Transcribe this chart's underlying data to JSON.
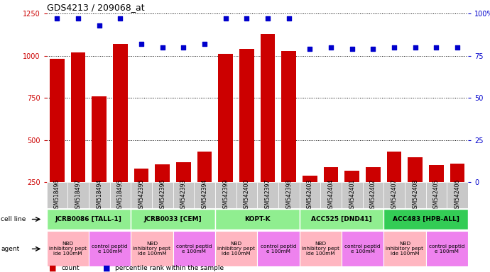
{
  "title": "GDS4213 / 209068_at",
  "samples": [
    "GSM518496",
    "GSM518497",
    "GSM518494",
    "GSM518495",
    "GSM542395",
    "GSM542396",
    "GSM542393",
    "GSM542394",
    "GSM542399",
    "GSM542400",
    "GSM542397",
    "GSM542398",
    "GSM542403",
    "GSM542404",
    "GSM542401",
    "GSM542402",
    "GSM542407",
    "GSM542408",
    "GSM542405",
    "GSM542406"
  ],
  "counts": [
    980,
    1020,
    760,
    1070,
    330,
    355,
    370,
    430,
    1010,
    1040,
    1130,
    1030,
    290,
    340,
    320,
    340,
    430,
    400,
    350,
    360
  ],
  "percentile": [
    97,
    97,
    93,
    97,
    82,
    80,
    80,
    82,
    97,
    97,
    97,
    97,
    79,
    80,
    79,
    79,
    80,
    80,
    80,
    80
  ],
  "cell_lines": [
    {
      "label": "JCRB0086 [TALL-1]",
      "start": 0,
      "end": 4,
      "color": "#90EE90"
    },
    {
      "label": "JCRB0033 [CEM]",
      "start": 4,
      "end": 8,
      "color": "#90EE90"
    },
    {
      "label": "KOPT-K",
      "start": 8,
      "end": 12,
      "color": "#90EE90"
    },
    {
      "label": "ACC525 [DND41]",
      "start": 12,
      "end": 16,
      "color": "#90EE90"
    },
    {
      "label": "ACC483 [HPB-ALL]",
      "start": 16,
      "end": 20,
      "color": "#33CC55"
    }
  ],
  "agents": [
    {
      "label": "NBD\ninhibitory pept\nide 100mM",
      "start": 0,
      "end": 2,
      "color": "#FFB6C1"
    },
    {
      "label": "control peptid\ne 100mM",
      "start": 2,
      "end": 4,
      "color": "#EE82EE"
    },
    {
      "label": "NBD\ninhibitory pept\nide 100mM",
      "start": 4,
      "end": 6,
      "color": "#FFB6C1"
    },
    {
      "label": "control peptid\ne 100mM",
      "start": 6,
      "end": 8,
      "color": "#EE82EE"
    },
    {
      "label": "NBD\ninhibitory pept\nide 100mM",
      "start": 8,
      "end": 10,
      "color": "#FFB6C1"
    },
    {
      "label": "control peptid\ne 100mM",
      "start": 10,
      "end": 12,
      "color": "#EE82EE"
    },
    {
      "label": "NBD\ninhibitory pept\nide 100mM",
      "start": 12,
      "end": 14,
      "color": "#FFB6C1"
    },
    {
      "label": "control peptid\ne 100mM",
      "start": 14,
      "end": 16,
      "color": "#EE82EE"
    },
    {
      "label": "NBD\ninhibitory pept\nide 100mM",
      "start": 16,
      "end": 18,
      "color": "#FFB6C1"
    },
    {
      "label": "control peptid\ne 100mM",
      "start": 18,
      "end": 20,
      "color": "#EE82EE"
    }
  ],
  "ylim_left": [
    250,
    1250
  ],
  "ylim_right": [
    0,
    100
  ],
  "yticks_left": [
    250,
    500,
    750,
    1000,
    1250
  ],
  "yticks_right": [
    0,
    25,
    50,
    75,
    100
  ],
  "bar_color": "#CC0000",
  "dot_color": "#0000CC",
  "tick_bg_color": "#C8C8C8",
  "legend_count_color": "#CC0000",
  "legend_dot_color": "#0000CC"
}
